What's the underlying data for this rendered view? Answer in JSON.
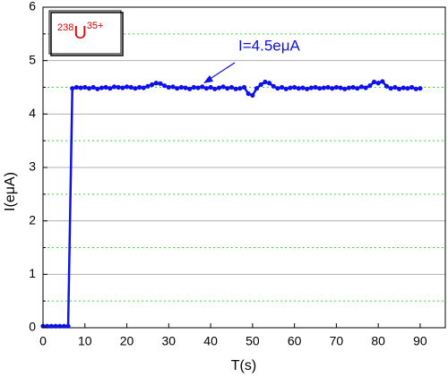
{
  "chart_data": {
    "type": "line",
    "xlabel": "T(s)",
    "ylabel": "I(eμA)",
    "annotation": "I=4.5eμA",
    "label_box": {
      "mass": "238",
      "symbol": "U",
      "charge": "35+"
    },
    "xlim": [
      0,
      96
    ],
    "ylim": [
      0,
      6
    ],
    "xticks": [
      0,
      10,
      20,
      30,
      40,
      50,
      60,
      70,
      80,
      90
    ],
    "yticks": [
      0,
      1,
      2,
      3,
      4,
      5,
      6
    ],
    "yminorticks": [
      0.5,
      1.5,
      2.5,
      3.5,
      4.5,
      5.5
    ],
    "grid": true,
    "series": [
      {
        "color": "#1010ee",
        "x": [
          0,
          1,
          2,
          3,
          4,
          5,
          6,
          7,
          8,
          9,
          10,
          11,
          12,
          13,
          14,
          15,
          16,
          17,
          18,
          19,
          20,
          21,
          22,
          23,
          24,
          25,
          26,
          27,
          28,
          29,
          30,
          31,
          32,
          33,
          34,
          35,
          36,
          37,
          38,
          39,
          40,
          41,
          42,
          43,
          44,
          45,
          46,
          47,
          48,
          49,
          50,
          51,
          52,
          53,
          54,
          55,
          56,
          57,
          58,
          59,
          60,
          61,
          62,
          63,
          64,
          65,
          66,
          67,
          68,
          69,
          70,
          71,
          72,
          73,
          74,
          75,
          76,
          77,
          78,
          79,
          80,
          81,
          82,
          83,
          84,
          85,
          86,
          87,
          88,
          89,
          90
        ],
        "values": [
          0.03,
          0.03,
          0.03,
          0.03,
          0.03,
          0.03,
          0.03,
          4.48,
          4.5,
          4.49,
          4.5,
          4.48,
          4.5,
          4.47,
          4.49,
          4.5,
          4.48,
          4.51,
          4.5,
          4.49,
          4.51,
          4.5,
          4.48,
          4.5,
          4.49,
          4.52,
          4.55,
          4.58,
          4.57,
          4.53,
          4.5,
          4.51,
          4.48,
          4.5,
          4.49,
          4.47,
          4.5,
          4.49,
          4.51,
          4.48,
          4.5,
          4.47,
          4.49,
          4.51,
          4.48,
          4.5,
          4.47,
          4.48,
          4.5,
          4.38,
          4.35,
          4.48,
          4.55,
          4.6,
          4.58,
          4.52,
          4.48,
          4.5,
          4.47,
          4.49,
          4.5,
          4.48,
          4.49,
          4.47,
          4.49,
          4.5,
          4.48,
          4.49,
          4.5,
          4.48,
          4.5,
          4.49,
          4.47,
          4.49,
          4.5,
          4.48,
          4.51,
          4.49,
          4.53,
          4.6,
          4.58,
          4.61,
          4.52,
          4.48,
          4.5,
          4.47,
          4.49,
          4.48,
          4.5,
          4.47,
          4.48
        ]
      }
    ]
  }
}
